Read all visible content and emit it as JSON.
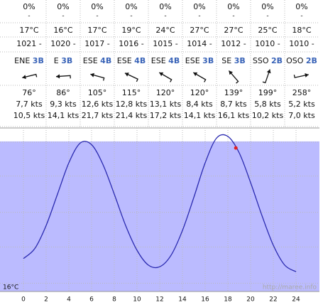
{
  "forecast": {
    "columns": [
      {
        "rain": "0%",
        "rain_note": "-",
        "temp": "17°C",
        "pressure": "1021 -",
        "dir": "ENE",
        "force": "3B",
        "degrees": "76°",
        "speed": "7,7 kts",
        "gust": "10,5 kts"
      },
      {
        "rain": "0%",
        "rain_note": "-",
        "temp": "16°C",
        "pressure": "1020 -",
        "dir": "E",
        "force": "3B",
        "degrees": "86°",
        "speed": "9,3 kts",
        "gust": "14,1 kts"
      },
      {
        "rain": "0%",
        "rain_note": "-",
        "temp": "17°C",
        "pressure": "1017 -",
        "dir": "ESE",
        "force": "4B",
        "degrees": "105°",
        "speed": "12,6 kts",
        "gust": "21,7 kts"
      },
      {
        "rain": "0%",
        "rain_note": "-",
        "temp": "19°C",
        "pressure": "1016 -",
        "dir": "ESE",
        "force": "4B",
        "degrees": "115°",
        "speed": "12,8 kts",
        "gust": "21,4 kts"
      },
      {
        "rain": "0%",
        "rain_note": "-",
        "temp": "24°C",
        "pressure": "1015 -",
        "dir": "ESE",
        "force": "4B",
        "degrees": "120°",
        "speed": "13,1 kts",
        "gust": "17,2 kts"
      },
      {
        "rain": "0%",
        "rain_note": "-",
        "temp": "27°C",
        "pressure": "1014 -",
        "dir": "ESE",
        "force": "3B",
        "degrees": "120°",
        "speed": "8,4 kts",
        "gust": "14,1 kts"
      },
      {
        "rain": "0%",
        "rain_note": "-",
        "temp": "27°C",
        "pressure": "1012 -",
        "dir": "SE",
        "force": "3B",
        "degrees": "139°",
        "speed": "8,7 kts",
        "gust": "16,1 kts"
      },
      {
        "rain": "0%",
        "rain_note": "-",
        "temp": "25°C",
        "pressure": "1010 -",
        "dir": "SSO",
        "force": "2B",
        "degrees": "199°",
        "speed": "5,8 kts",
        "gust": "10,2 kts"
      },
      {
        "rain": "0%",
        "rain_note": "-",
        "temp": "18°C",
        "pressure": "1010 -",
        "dir": "OSO",
        "force": "2B",
        "degrees": "258°",
        "speed": "5,2 kts",
        "gust": "7,0 kts"
      }
    ]
  },
  "chart_data": {
    "type": "line",
    "water_temp": "16°C",
    "watermark": "http://maree.info",
    "x": [
      0,
      1,
      2,
      3,
      4,
      5,
      6,
      7,
      8,
      9,
      10,
      11,
      12,
      13,
      14,
      15,
      16,
      17,
      18,
      19,
      20,
      21,
      22,
      23,
      24
    ],
    "values": [
      2.0,
      2.6,
      4.0,
      5.9,
      7.8,
      9.0,
      8.9,
      7.7,
      5.9,
      4.0,
      2.5,
      1.6,
      1.5,
      2.2,
      3.7,
      5.7,
      7.8,
      9.3,
      9.4,
      8.4,
      6.6,
      4.6,
      2.8,
      1.6,
      1.2
    ],
    "color": "#2a2ab0",
    "shade_level": 9.1,
    "shade_color": "#bbbbff",
    "current": {
      "x": 18.7,
      "value": 8.7,
      "color": "#e02020"
    },
    "xlim": [
      -2.06,
      26.06
    ],
    "ylim": [
      0,
      10
    ],
    "xticks": [
      0,
      2,
      4,
      6,
      8,
      10,
      12,
      14,
      16,
      18,
      20,
      22,
      24
    ],
    "ygrid": [
      9.05,
      7.0,
      4.8,
      2.7,
      0.5
    ],
    "grid": true
  }
}
